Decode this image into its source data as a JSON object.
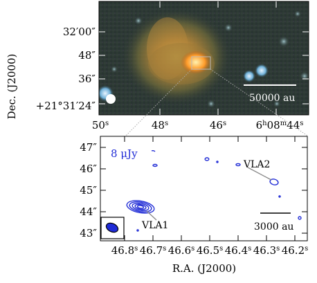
{
  "figure": {
    "top_panel": {
      "dec_axis_label": "Dec. (J2000)",
      "dec_ticks": [
        "32′00″",
        "48″",
        "36″",
        "+21°31′24″"
      ],
      "ra_ticks_upper": [
        "50",
        "48",
        "46"
      ],
      "ra_tick_last_h": "6",
      "ra_tick_last_m": "08",
      "ra_tick_last_s": "44",
      "ra_unit_h": "h",
      "ra_unit_m": "m",
      "ra_unit_s": "s",
      "scale_bar_label": "50000 au"
    },
    "bottom_panel": {
      "ra_axis_label": "R.A. (J2000)",
      "dec_ticks": [
        "47″",
        "46″",
        "45″",
        "44″",
        "43″"
      ],
      "ra_ticks": [
        "46.8",
        "46.7",
        "46.6",
        "46.5",
        "46.4",
        "46.3",
        "46.2"
      ],
      "ra_unit_s": "s",
      "contour_level_label": "8 μJy",
      "source_labels": [
        "VLA1",
        "VLA2"
      ],
      "scale_bar_label": "3000 au",
      "contour_color": "#1f2bd6"
    }
  }
}
